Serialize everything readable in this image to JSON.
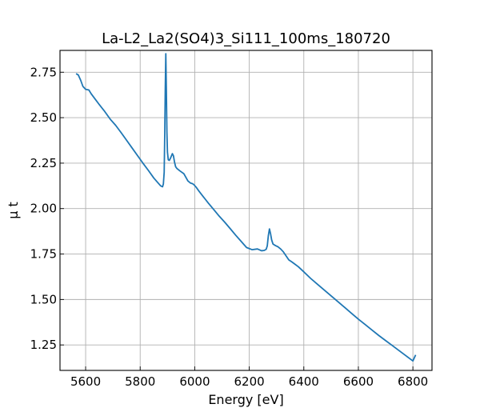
{
  "chart_data": {
    "type": "line",
    "title": "La-L2_La2(SO4)3_Si111_100ms_180720",
    "xlabel": "Energy [eV]",
    "ylabel": "μ t",
    "xlim": [
      5506,
      6870
    ],
    "ylim": [
      1.11,
      2.87
    ],
    "xticks": [
      5600,
      5800,
      6000,
      6200,
      6400,
      6600,
      6800
    ],
    "xtick_labels": [
      "5600",
      "5800",
      "6000",
      "6200",
      "6400",
      "6600",
      "6800"
    ],
    "yticks": [
      1.25,
      1.5,
      1.75,
      2.0,
      2.25,
      2.5,
      2.75
    ],
    "ytick_labels": [
      "1.25",
      "1.50",
      "1.75",
      "2.00",
      "2.25",
      "2.50",
      "2.75"
    ],
    "grid": true,
    "series": [
      {
        "color": "#1f77b4",
        "x": [
          5565,
          5573,
          5582,
          5590,
          5600,
          5612,
          5620,
          5635,
          5650,
          5670,
          5690,
          5710,
          5730,
          5750,
          5770,
          5790,
          5810,
          5830,
          5850,
          5865,
          5875,
          5882,
          5885,
          5888,
          5890,
          5892,
          5894,
          5896,
          5898,
          5900,
          5903,
          5907,
          5912,
          5918,
          5922,
          5926,
          5930,
          5935,
          5945,
          5960,
          5975,
          5985,
          5992,
          5998,
          6005,
          6015,
          6030,
          6050,
          6070,
          6090,
          6110,
          6130,
          6150,
          6170,
          6190,
          6210,
          6230,
          6245,
          6255,
          6262,
          6266,
          6270,
          6274,
          6278,
          6282,
          6287,
          6292,
          6298,
          6305,
          6315,
          6325,
          6335,
          6345,
          6355,
          6365,
          6380,
          6400,
          6425,
          6450,
          6475,
          6500,
          6525,
          6550,
          6575,
          6600,
          6625,
          6650,
          6675,
          6700,
          6725,
          6750,
          6775,
          6800,
          6810
        ],
        "y": [
          2.742,
          2.735,
          2.705,
          2.672,
          2.656,
          2.652,
          2.632,
          2.602,
          2.572,
          2.534,
          2.492,
          2.458,
          2.418,
          2.376,
          2.334,
          2.292,
          2.25,
          2.21,
          2.168,
          2.142,
          2.125,
          2.12,
          2.135,
          2.2,
          2.4,
          2.66,
          2.852,
          2.65,
          2.42,
          2.31,
          2.268,
          2.265,
          2.28,
          2.302,
          2.29,
          2.255,
          2.23,
          2.22,
          2.208,
          2.192,
          2.152,
          2.14,
          2.137,
          2.13,
          2.118,
          2.097,
          2.068,
          2.03,
          1.994,
          1.958,
          1.925,
          1.89,
          1.854,
          1.82,
          1.786,
          1.774,
          1.778,
          1.768,
          1.77,
          1.776,
          1.795,
          1.852,
          1.888,
          1.862,
          1.828,
          1.805,
          1.8,
          1.795,
          1.79,
          1.778,
          1.762,
          1.74,
          1.718,
          1.708,
          1.697,
          1.68,
          1.652,
          1.616,
          1.584,
          1.552,
          1.52,
          1.488,
          1.456,
          1.424,
          1.392,
          1.362,
          1.332,
          1.302,
          1.274,
          1.246,
          1.218,
          1.19,
          1.162,
          1.195
        ]
      }
    ]
  }
}
